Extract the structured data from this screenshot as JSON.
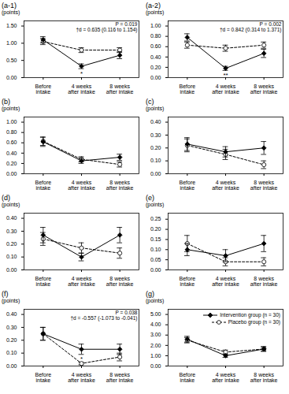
{
  "chart_data": [
    {
      "type": "line",
      "title": "(a-1)",
      "ylabel": "(points)",
      "categories": [
        "Before\nintake",
        "4 weeks\nafter intake",
        "8 weeks\nafter intake"
      ],
      "ylim": [
        0,
        1.65
      ],
      "yticks": [
        {
          "value": 0,
          "label": "0.00"
        },
        {
          "value": 0.5,
          "label": "0.50"
        },
        {
          "value": 1,
          "label": "1.00"
        },
        {
          "value": 1.5,
          "label": "1.50"
        }
      ],
      "grid": false,
      "legend": false,
      "series": [
        {
          "name": "Intervention group (n = 30)",
          "color": "#000000",
          "marker": "diamond",
          "line_style": "solid",
          "values": [
            1.1,
            0.33,
            0.65
          ],
          "error": [
            0.09,
            0.07,
            0.1
          ]
        },
        {
          "name": "Placebo group (n = 30)",
          "color": "#000000",
          "marker": "circle",
          "line_style": "dashed",
          "values": [
            1.05,
            0.8,
            0.8
          ],
          "error": [
            0.09,
            0.07,
            0.07
          ]
        }
      ],
      "annotations": [
        {
          "text": "P = 0.019\n†d = 0.635 (0.116 to 1.154)"
        },
        {
          "text": "*",
          "x": "4 weeks\nafter intake",
          "series": "Intervention group (n = 30)"
        }
      ]
    },
    {
      "type": "line",
      "title": "(a-2)",
      "ylabel": "(points)",
      "categories": [
        "Before\nintake",
        "4 weeks\nafter intake",
        "8 weeks\nafter intake"
      ],
      "ylim": [
        0,
        1.1
      ],
      "yticks": [
        {
          "value": 0,
          "label": "0.00"
        },
        {
          "value": 0.2,
          "label": "0.20"
        },
        {
          "value": 0.4,
          "label": "0.40"
        },
        {
          "value": 0.6,
          "label": "0.60"
        },
        {
          "value": 0.8,
          "label": "0.80"
        },
        {
          "value": 1,
          "label": "1.00"
        }
      ],
      "grid": false,
      "legend": false,
      "series": [
        {
          "name": "Intervention group (n = 30)",
          "color": "#000000",
          "marker": "diamond",
          "line_style": "solid",
          "values": [
            0.78,
            0.18,
            0.47
          ],
          "error": [
            0.07,
            0.04,
            0.08
          ]
        },
        {
          "name": "Placebo group (n = 30)",
          "color": "#000000",
          "marker": "circle",
          "line_style": "dashed",
          "values": [
            0.63,
            0.57,
            0.63
          ],
          "error": [
            0.06,
            0.06,
            0.06
          ]
        }
      ],
      "annotations": [
        {
          "text": "P = 0.002\n†d = 0.842 (0.314 to 1.371)"
        },
        {
          "text": "**",
          "x": "4 weeks\nafter intake",
          "series": "Intervention group (n = 30)"
        }
      ]
    },
    {
      "type": "line",
      "title": "(b)",
      "ylabel": "(points)",
      "categories": [
        "Before\nintake",
        "4 weeks\nafter intake",
        "8 weeks\nafter intake"
      ],
      "ylim": [
        0,
        1.1
      ],
      "yticks": [
        {
          "value": 0,
          "label": "0.00"
        },
        {
          "value": 0.2,
          "label": "0.20"
        },
        {
          "value": 0.4,
          "label": "0.40"
        },
        {
          "value": 0.6,
          "label": "0.60"
        },
        {
          "value": 0.8,
          "label": "0.80"
        },
        {
          "value": 1,
          "label": "1.00"
        }
      ],
      "grid": false,
      "legend": false,
      "series": [
        {
          "name": "Intervention group (n = 30)",
          "color": "#000000",
          "marker": "diamond",
          "line_style": "solid",
          "values": [
            0.62,
            0.25,
            0.32
          ],
          "error": [
            0.09,
            0.05,
            0.06
          ]
        },
        {
          "name": "Placebo group (n = 30)",
          "color": "#000000",
          "marker": "circle",
          "line_style": "dashed",
          "values": [
            0.63,
            0.28,
            0.18
          ],
          "error": [
            0.08,
            0.05,
            0.05
          ]
        }
      ]
    },
    {
      "type": "line",
      "title": "(c)",
      "ylabel": "(points)",
      "categories": [
        "Before\nintake",
        "4 weeks\nafter intake",
        "8 weeks\nafter intake"
      ],
      "ylim": [
        0,
        0.44
      ],
      "yticks": [
        {
          "value": 0,
          "label": "0.00"
        },
        {
          "value": 0.1,
          "label": "0.10"
        },
        {
          "value": 0.2,
          "label": "0.20"
        },
        {
          "value": 0.3,
          "label": "0.30"
        },
        {
          "value": 0.4,
          "label": "0.40"
        }
      ],
      "grid": false,
      "legend": false,
      "series": [
        {
          "name": "Intervention group (n = 30)",
          "color": "#000000",
          "marker": "diamond",
          "line_style": "solid",
          "values": [
            0.23,
            0.17,
            0.2
          ],
          "error": [
            0.05,
            0.04,
            0.05
          ]
        },
        {
          "name": "Placebo group (n = 30)",
          "color": "#000000",
          "marker": "circle",
          "line_style": "dashed",
          "values": [
            0.22,
            0.15,
            0.07
          ],
          "error": [
            0.05,
            0.04,
            0.03
          ]
        }
      ]
    },
    {
      "type": "line",
      "title": "(d)",
      "ylabel": "(points)",
      "categories": [
        "Before\nintake",
        "4 weeks\nafter intake",
        "8 weeks\nafter intake"
      ],
      "ylim": [
        0,
        0.44
      ],
      "yticks": [
        {
          "value": 0,
          "label": "0.00"
        },
        {
          "value": 0.1,
          "label": "0.10"
        },
        {
          "value": 0.2,
          "label": "0.20"
        },
        {
          "value": 0.3,
          "label": "0.30"
        },
        {
          "value": 0.4,
          "label": "0.40"
        }
      ],
      "grid": false,
      "legend": false,
      "series": [
        {
          "name": "Intervention group (n = 30)",
          "color": "#000000",
          "marker": "diamond",
          "line_style": "solid",
          "values": [
            0.27,
            0.1,
            0.27
          ],
          "error": [
            0.06,
            0.03,
            0.06
          ]
        },
        {
          "name": "Placebo group (n = 30)",
          "color": "#000000",
          "marker": "circle",
          "line_style": "dashed",
          "values": [
            0.24,
            0.17,
            0.13
          ],
          "error": [
            0.05,
            0.04,
            0.04
          ]
        }
      ]
    },
    {
      "type": "line",
      "title": "(e)",
      "ylabel": "(points)",
      "categories": [
        "Before\nintake",
        "4 weeks\nafter intake",
        "8 weeks\nafter intake"
      ],
      "ylim": [
        0,
        0.28
      ],
      "yticks": [
        {
          "value": 0,
          "label": "0.00"
        },
        {
          "value": 0.05,
          "label": "0.05"
        },
        {
          "value": 0.1,
          "label": "0.10"
        },
        {
          "value": 0.15,
          "label": "0.15"
        },
        {
          "value": 0.2,
          "label": "0.20"
        },
        {
          "value": 0.25,
          "label": "0.25"
        }
      ],
      "grid": false,
      "legend": false,
      "series": [
        {
          "name": "Intervention group (n = 30)",
          "color": "#000000",
          "marker": "diamond",
          "line_style": "solid",
          "values": [
            0.1,
            0.07,
            0.13
          ],
          "error": [
            0.03,
            0.03,
            0.04
          ]
        },
        {
          "name": "Placebo group (n = 30)",
          "color": "#000000",
          "marker": "circle",
          "line_style": "dashed",
          "values": [
            0.13,
            0.04,
            0.04
          ],
          "error": [
            0.04,
            0.02,
            0.02
          ]
        }
      ]
    },
    {
      "type": "line",
      "title": "(f)",
      "ylabel": "(points)",
      "categories": [
        "Before\nintake",
        "4 weeks\nafter intake",
        "8 weeks\nafter intake"
      ],
      "ylim": [
        0,
        0.44
      ],
      "yticks": [
        {
          "value": 0,
          "label": "0.00"
        },
        {
          "value": 0.1,
          "label": "0.10"
        },
        {
          "value": 0.2,
          "label": "0.20"
        },
        {
          "value": 0.3,
          "label": "0.30"
        },
        {
          "value": 0.4,
          "label": "0.40"
        }
      ],
      "grid": false,
      "legend": false,
      "series": [
        {
          "name": "Intervention group (n = 30)",
          "color": "#000000",
          "marker": "diamond",
          "line_style": "solid",
          "values": [
            0.25,
            0.13,
            0.13
          ],
          "error": [
            0.05,
            0.04,
            0.04
          ]
        },
        {
          "name": "Placebo group (n = 30)",
          "color": "#000000",
          "marker": "circle",
          "line_style": "dashed",
          "values": [
            0.25,
            0.02,
            0.07
          ],
          "error": [
            0.05,
            0.01,
            0.03
          ]
        }
      ],
      "annotations": [
        {
          "text": "P = 0.038\n†d = -0.557 (-1.073 to -0.041)"
        },
        {
          "text": "*",
          "x": "4 weeks\nafter intake",
          "series": "Intervention group (n = 30)"
        }
      ]
    },
    {
      "type": "line",
      "title": "(g)",
      "ylabel": "(points)",
      "categories": [
        "Before\nintake",
        "4 weeks\nafter intake",
        "8 weeks\nafter intake"
      ],
      "ylim": [
        0,
        5.5
      ],
      "yticks": [
        {
          "value": 0,
          "label": "0.00"
        },
        {
          "value": 1,
          "label": "1.00"
        },
        {
          "value": 2,
          "label": "2.00"
        },
        {
          "value": 3,
          "label": "3.00"
        },
        {
          "value": 4,
          "label": "4.00"
        },
        {
          "value": 5,
          "label": "5.00"
        }
      ],
      "grid": false,
      "legend": "upper right",
      "series": [
        {
          "name": "Intervention group (n = 30)",
          "color": "#000000",
          "marker": "diamond",
          "line_style": "solid",
          "values": [
            2.6,
            1.0,
            1.65
          ],
          "error": [
            0.28,
            0.16,
            0.22
          ]
        },
        {
          "name": "Placebo group (n = 30)",
          "color": "#000000",
          "marker": "circle",
          "line_style": "dashed",
          "values": [
            2.5,
            1.35,
            1.65
          ],
          "error": [
            0.26,
            0.2,
            0.22
          ]
        }
      ]
    }
  ]
}
